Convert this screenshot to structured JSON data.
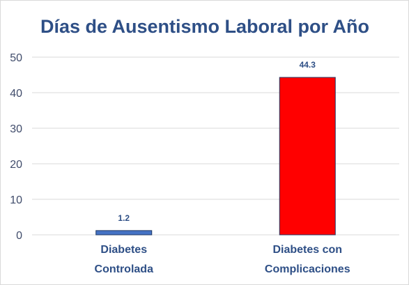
{
  "chart_data": {
    "type": "bar",
    "title": "Días de Ausentismo Laboral por Año",
    "categories": [
      [
        "Diabetes",
        "Controlada"
      ],
      [
        "Diabetes con",
        "Complicaciones"
      ]
    ],
    "values": [
      1.2,
      44.3
    ],
    "data_labels": [
      "1.2",
      "44.3"
    ],
    "bar_colors": [
      "#4472c4",
      "#ff0000"
    ],
    "ylim": [
      0,
      50
    ],
    "yticks": [
      0,
      10,
      20,
      30,
      40,
      50
    ],
    "ytick_labels": [
      "0",
      "10",
      "20",
      "30",
      "40",
      "50"
    ],
    "grid": true,
    "legend": "none"
  }
}
